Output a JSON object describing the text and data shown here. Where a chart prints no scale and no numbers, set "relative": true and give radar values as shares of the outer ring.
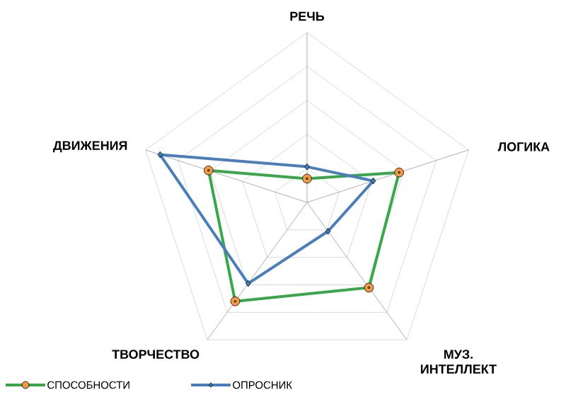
{
  "chart_data": {
    "type": "radar",
    "relative": true,
    "grid": true,
    "legend": "bottom",
    "categories": [
      "РЕЧЬ",
      "ЛОГИКА",
      "МУЗ. ИНТЕЛЛЕКТ",
      "ТВОРЧЕСТВО",
      "ДВИЖЕНИЯ"
    ],
    "series": [
      {
        "name": "СПОСОБНОСТИ",
        "color": "#3aa64a",
        "colors": [
          "#f79646",
          "#f79646",
          "#f79646",
          "#f79646",
          "#f79646"
        ],
        "marker": "circle",
        "values": [
          0.14,
          0.57,
          0.62,
          0.72,
          0.61
        ]
      },
      {
        "name": "ОПРОСНИК",
        "color": "#4a7ebb",
        "marker": "diamond",
        "values": [
          0.21,
          0.41,
          0.21,
          0.59,
          0.91
        ]
      }
    ]
  }
}
